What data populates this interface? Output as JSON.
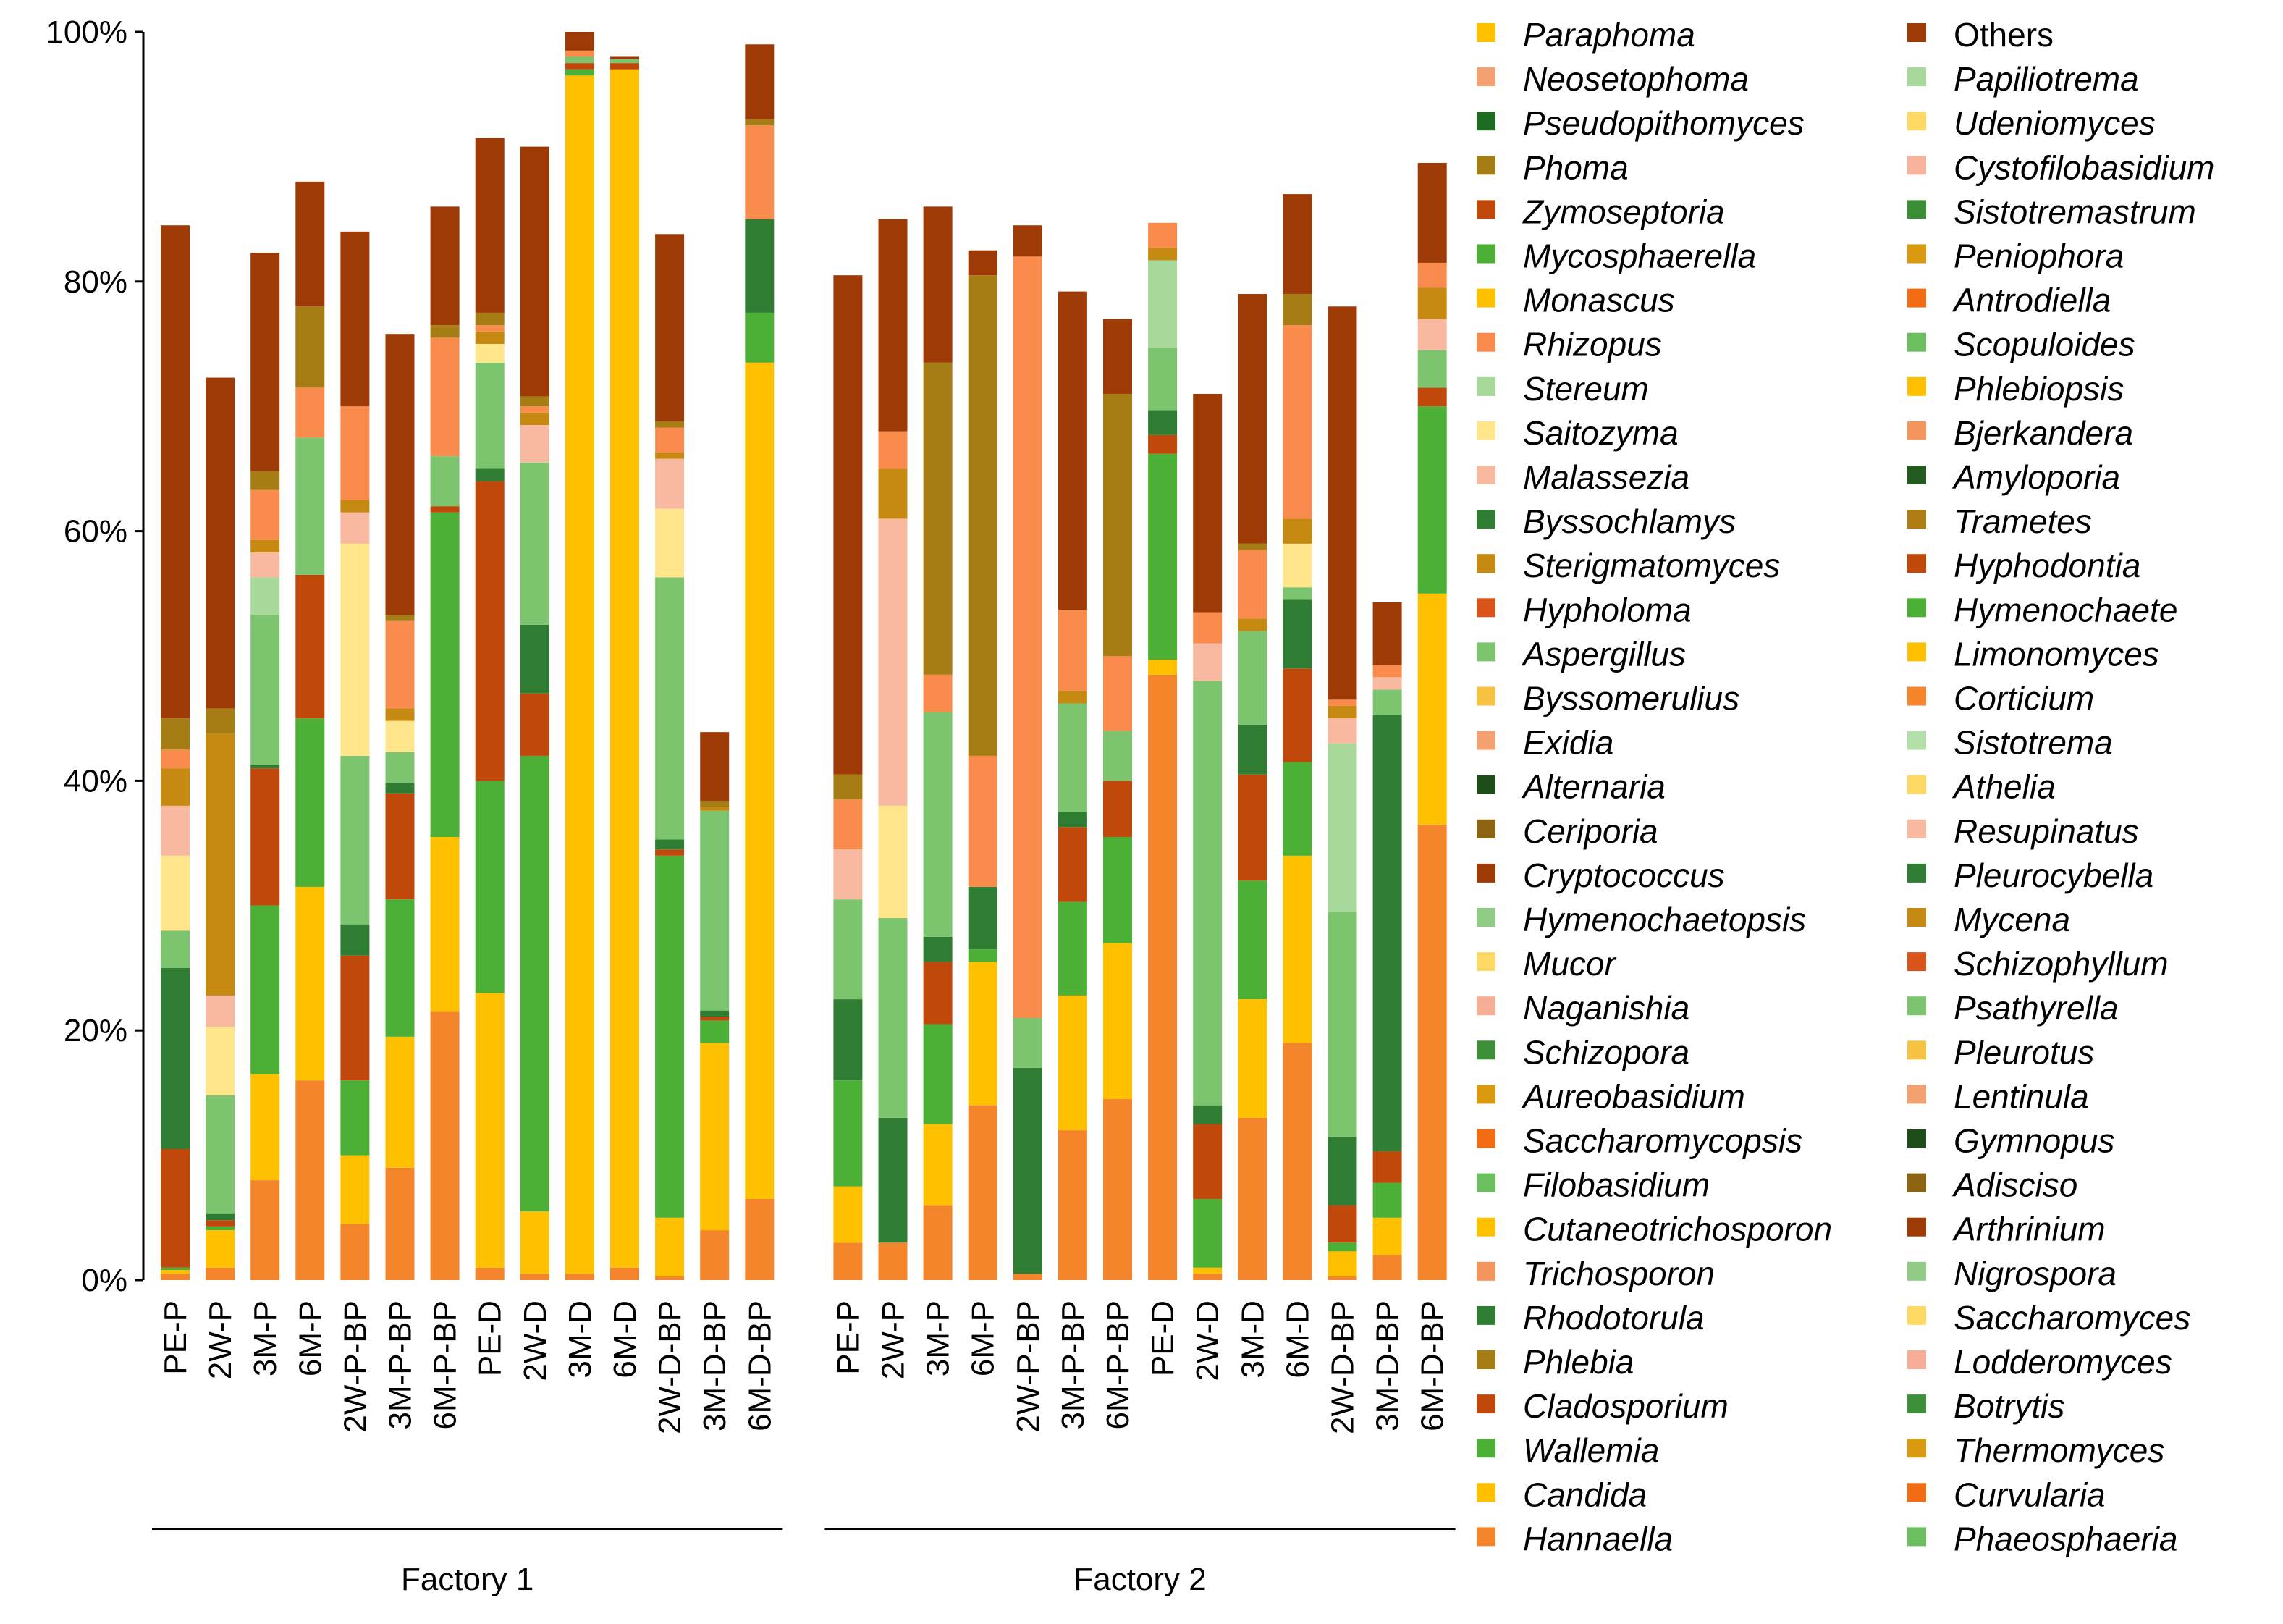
{
  "chart_data": {
    "type": "bar",
    "stacked": true,
    "normalized": true,
    "title": "",
    "xlabel": "",
    "ylabel": "",
    "ylim": [
      0,
      100
    ],
    "yticks": [
      "0%",
      "20%",
      "40%",
      "60%",
      "80%",
      "100%"
    ],
    "groups": [
      {
        "name": "Factory 1",
        "categories": [
          "PE-P",
          "2W-P",
          "3M-P",
          "6M-P",
          "2W-P-BP",
          "3M-P-BP",
          "6M-P-BP",
          "PE-D",
          "2W-D",
          "3M-D",
          "6M-D",
          "2W-D-BP",
          "3M-D-BP",
          "6M-D-BP"
        ]
      },
      {
        "name": "Factory 2",
        "categories": [
          "PE-P",
          "2W-P",
          "3M-P",
          "6M-P",
          "2W-P-BP",
          "3M-P-BP",
          "6M-P-BP",
          "PE-D",
          "2W-D",
          "3M-D",
          "6M-D",
          "2W-D-BP",
          "3M-D-BP",
          "6M-D-BP"
        ]
      }
    ],
    "legend_position": "right",
    "series": [
      {
        "name": "Hannaella",
        "color": "#F4852A",
        "values": [
          0.5,
          1,
          8,
          16,
          4.5,
          9,
          21.5,
          1,
          0.5,
          0.5,
          1,
          0.3,
          4,
          6.5,
          3,
          3,
          6,
          14,
          0.5,
          12,
          14.5,
          48.5,
          0.5,
          13,
          19,
          0.3,
          2,
          36.5
        ]
      },
      {
        "name": "Candida",
        "color": "#FFC000",
        "values": [
          0.3,
          3,
          8.5,
          15.5,
          5.5,
          10.5,
          14,
          22,
          5,
          96,
          96,
          4.7,
          15,
          67,
          4.5,
          0,
          6.5,
          11.5,
          0,
          10.8,
          12.5,
          1.2,
          0.5,
          9.5,
          15,
          2,
          3,
          18.5
        ]
      },
      {
        "name": "Wallemia",
        "color": "#4CAF36",
        "values": [
          0.2,
          0.3,
          13.5,
          13.5,
          6,
          11,
          26,
          17,
          36.5,
          0.5,
          0,
          29,
          1.8,
          4,
          8.5,
          0,
          8,
          1,
          0,
          7.5,
          8.5,
          16.5,
          5.5,
          9.5,
          7.5,
          0.7,
          2.8,
          15
        ]
      },
      {
        "name": "Cladosporium",
        "color": "#C0480B",
        "values": [
          9.5,
          0.5,
          11,
          11.5,
          10,
          8.5,
          0.5,
          24,
          5,
          0.5,
          0.5,
          0.5,
          0.3,
          0,
          0,
          0,
          5,
          0,
          0,
          6,
          4.5,
          1.5,
          6,
          8.5,
          7.5,
          3,
          2.5,
          1.5
        ]
      },
      {
        "name": "Rhodotorula",
        "color": "#2E7D32",
        "values": [
          14.5,
          0.5,
          0.3,
          0,
          2.5,
          0.8,
          0,
          1,
          5.5,
          0,
          0,
          0.8,
          0.5,
          7.5,
          6.5,
          10,
          2,
          5,
          16.5,
          1.2,
          0,
          2,
          1.5,
          4,
          5.5,
          5.5,
          35,
          0
        ]
      },
      {
        "name": "Aspergillus",
        "color": "#7DC46E",
        "values": [
          3,
          9.5,
          12,
          11,
          13.5,
          2.5,
          4,
          8.5,
          13,
          0.5,
          0.3,
          21,
          16,
          0,
          8,
          16,
          18,
          0,
          4,
          8.7,
          4,
          5,
          34,
          7.5,
          1,
          18,
          2,
          3
        ]
      },
      {
        "name": "Stereum",
        "color": "#A8D89A",
        "values": [
          0,
          0,
          3,
          0,
          0,
          0,
          0,
          0,
          0,
          0,
          0,
          0,
          0,
          0,
          0,
          0,
          0,
          0,
          0,
          0,
          0,
          7,
          0,
          0,
          0,
          13.5,
          0,
          0
        ]
      },
      {
        "name": "Saitozyma",
        "color": "#FFE68A",
        "values": [
          6,
          5.5,
          0,
          0,
          17,
          2.5,
          0,
          1.5,
          0,
          0,
          0,
          5.5,
          0,
          0,
          0,
          9,
          0,
          0,
          0,
          0,
          0,
          0,
          0,
          0,
          3.5,
          0,
          0,
          0
        ]
      },
      {
        "name": "Malassezia",
        "color": "#F9B9A0",
        "values": [
          4,
          2.5,
          2,
          0,
          2.5,
          0,
          0,
          0,
          3,
          0,
          0,
          4,
          0,
          0,
          4,
          23,
          0,
          0,
          0,
          0,
          0,
          0,
          3,
          0,
          0,
          2,
          1,
          2.5
        ]
      },
      {
        "name": "Sterigmatomyces",
        "color": "#C68A12",
        "values": [
          3,
          21,
          1,
          0,
          1,
          1,
          0,
          1,
          1,
          0,
          0,
          0.5,
          0.3,
          0,
          0,
          4,
          0,
          0,
          0,
          1,
          0,
          1,
          0,
          1,
          2,
          1,
          0,
          2.5
        ]
      },
      {
        "name": "Rhizopus",
        "color": "#F98C4C",
        "values": [
          1.5,
          0,
          4,
          4,
          7.5,
          7,
          9.5,
          0.5,
          0.5,
          0.5,
          0,
          2,
          0,
          7.5,
          4,
          3,
          3,
          10.5,
          61,
          6.5,
          6,
          2,
          2.5,
          5.5,
          15.5,
          0.5,
          1,
          2
        ]
      },
      {
        "name": "Phoma",
        "color": "#A67C15",
        "values": [
          2.5,
          2,
          1.5,
          6.5,
          0,
          0.5,
          1,
          1,
          0.8,
          0,
          0,
          0.5,
          0.5,
          0.5,
          2,
          0,
          25,
          38.5,
          0,
          0,
          21,
          0,
          0,
          0.5,
          2.5,
          0,
          0,
          0
        ]
      },
      {
        "name": "Others",
        "color": "#9E3A06",
        "values": [
          39.5,
          26.5,
          17.5,
          10,
          14,
          22.5,
          9.5,
          14,
          20,
          1.5,
          0.2,
          15,
          5.5,
          6,
          40,
          17,
          12.5,
          2,
          2.5,
          25.5,
          6,
          0,
          17.5,
          20,
          8,
          31.5,
          5,
          8
        ]
      }
    ],
    "legend": [
      "Paraphoma",
      "Neosetophoma",
      "Pseudopithomyces",
      "Phoma",
      "Zymoseptoria",
      "Mycosphaerella",
      "Monascus",
      "Rhizopus",
      "Stereum",
      "Saitozyma",
      "Malassezia",
      "Byssochlamys",
      "Sterigmatomyces",
      "Hypholoma",
      "Aspergillus",
      "Byssomerulius",
      "Exidia",
      "Alternaria",
      "Ceriporia",
      "Cryptococcus",
      "Hymenochaetopsis",
      "Mucor",
      "Naganishia",
      "Schizopora",
      "Aureobasidium",
      "Saccharomycopsis",
      "Filobasidium",
      "Cutaneotrichosporon",
      "Trichosporon",
      "Rhodotorula",
      "Phlebia",
      "Cladosporium",
      "Wallemia",
      "Candida",
      "Hannaella",
      "Others",
      "Papiliotrema",
      "Udeniomyces",
      "Cystofilobasidium",
      "Sistotremastrum",
      "Peniophora",
      "Antrodiella",
      "Scopuloides",
      "Phlebiopsis",
      "Bjerkandera",
      "Amyloporia",
      "Trametes",
      "Hyphodontia",
      "Hymenochaete",
      "Limonomyces",
      "Corticium",
      "Sistotrema",
      "Athelia",
      "Resupinatus",
      "Pleurocybella",
      "Mycena",
      "Schizophyllum",
      "Psathyrella",
      "Pleurotus",
      "Lentinula",
      "Gymnopus",
      "Adisciso",
      "Arthrinium",
      "Nigrospora",
      "Saccharomyces",
      "Lodderomyces",
      "Botrytis",
      "Thermomyces",
      "Curvularia",
      "Phaeosphaeria"
    ],
    "legend_colors": [
      "#FFC000",
      "#F4A070",
      "#1E6B22",
      "#A67C15",
      "#C0480B",
      "#4CAF36",
      "#FFC000",
      "#F98C4C",
      "#A8D89A",
      "#FFE68A",
      "#F9B9A0",
      "#2E7D32",
      "#C68A12",
      "#D9541A",
      "#7DC46E",
      "#F6C342",
      "#F4A070",
      "#1E4D1A",
      "#8C6412",
      "#9E3A06",
      "#8FCB84",
      "#FFD966",
      "#F7AE96",
      "#3D8F3A",
      "#D99A10",
      "#F26B12",
      "#6CBF5F",
      "#FFC000",
      "#F4955E",
      "#2E7D32",
      "#A67C15",
      "#C0480B",
      "#4CAF36",
      "#FFC000",
      "#F4852A",
      "#9E3A06",
      "#A8D89A",
      "#FFD966",
      "#F9B39A",
      "#3A8E34",
      "#D99A10",
      "#F26B12",
      "#6CBF5F",
      "#FFC000",
      "#F4955E",
      "#225B1F",
      "#B07D15",
      "#C0480B",
      "#4CAF36",
      "#FFC000",
      "#F4852A",
      "#B3DFA8",
      "#FFD966",
      "#F9B9A0",
      "#2E7D32",
      "#C68A12",
      "#D9541A",
      "#7DC46E",
      "#F6C342",
      "#F4A070",
      "#1E4D1A",
      "#8C6412",
      "#9E3A06",
      "#8FCB84",
      "#FFD966",
      "#F7AE96",
      "#3D8F3A",
      "#D99A10",
      "#F26B12",
      "#6CBF5F"
    ]
  }
}
